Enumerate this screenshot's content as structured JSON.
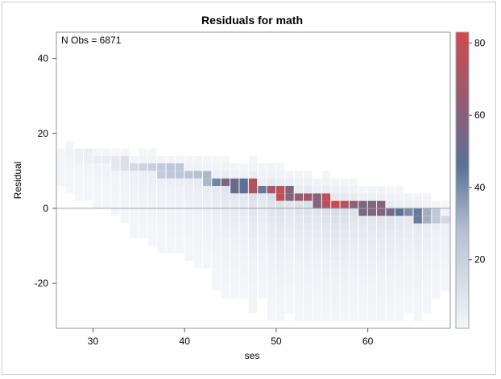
{
  "chart_data": {
    "type": "heatmap",
    "title": "Residuals for math",
    "xlabel": "ses",
    "ylabel": "Residual",
    "annotation": "N Obs = 6871",
    "xlim": [
      26,
      69
    ],
    "ylim": [
      -32,
      47
    ],
    "xticks": [
      30,
      40,
      50,
      60
    ],
    "yticks": [
      -20,
      0,
      20,
      40
    ],
    "reference_line_y": 0,
    "bin_width_x": 1,
    "bin_height_y": 2,
    "colorbar": {
      "min": 1,
      "max": 83,
      "ticks": [
        20,
        40,
        60,
        80
      ],
      "colors": [
        "#f4f6fa",
        "#b5c0d2",
        "#5a7195",
        "#d2484d"
      ]
    },
    "band_counts": {
      "x": [
        26,
        27,
        28,
        29,
        30,
        31,
        32,
        33,
        34,
        35,
        36,
        37,
        38,
        39,
        40,
        41,
        42,
        43,
        44,
        45,
        46,
        47,
        48,
        49,
        50,
        51,
        52,
        53,
        54,
        55,
        56,
        57,
        58,
        59,
        60,
        61,
        62,
        63,
        64,
        65,
        66,
        67,
        68
      ],
      "peak_y": [
        14,
        14,
        13,
        13,
        12,
        12,
        11,
        11,
        10,
        10,
        10,
        9,
        9,
        9,
        8,
        8,
        7,
        6,
        6,
        5,
        5,
        5,
        4,
        4,
        3,
        3,
        2,
        2,
        1,
        1,
        0,
        0,
        0,
        -1,
        -1,
        -1,
        -2,
        -2,
        -2,
        -3,
        -3,
        -3,
        -4
      ],
      "peak_count": [
        2,
        3,
        4,
        5,
        6,
        6,
        8,
        12,
        15,
        18,
        20,
        22,
        24,
        24,
        26,
        28,
        30,
        42,
        58,
        52,
        46,
        74,
        44,
        72,
        78,
        58,
        66,
        68,
        60,
        76,
        80,
        74,
        62,
        56,
        58,
        60,
        54,
        46,
        40,
        44,
        32,
        24,
        16
      ]
    },
    "grid": false,
    "legend": "colorbar-right"
  }
}
